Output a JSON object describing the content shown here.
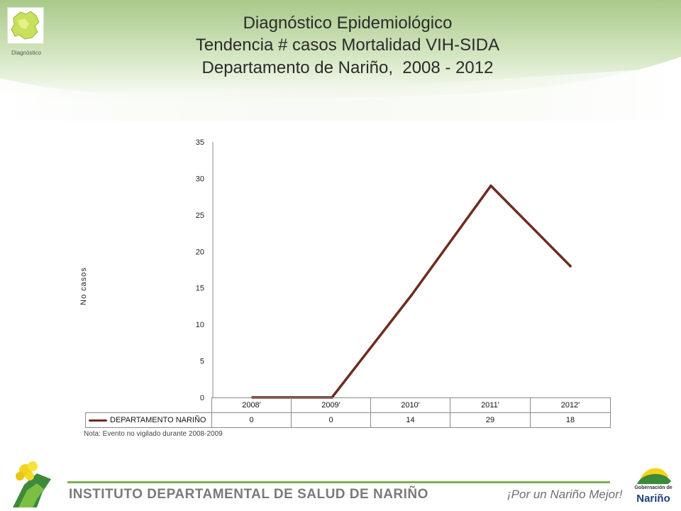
{
  "header": {
    "title_lines": [
      "Diagnóstico Epidemiológico",
      "Tendencia # casos Mortalidad VIH-SIDA",
      "Departamento de Nariño,  2008 - 2012"
    ],
    "logo_caption": "Diagnóstico",
    "logo_icon": "narino-map-icon"
  },
  "chart_data": {
    "type": "line",
    "categories": [
      "2008'",
      "2009'",
      "2010'",
      "2011'",
      "2012'"
    ],
    "series": [
      {
        "name": "DEPARTAMENTO NARIÑO",
        "values": [
          0,
          0,
          14,
          29,
          18
        ],
        "color": "#6e2b1f"
      }
    ],
    "title": "",
    "xlabel": "",
    "ylabel": "No  casos",
    "ylim": [
      0,
      35
    ],
    "yticks": [
      0,
      5,
      10,
      15,
      20,
      25,
      30,
      35
    ],
    "grid": false,
    "legend": "data-table",
    "note": "Nota: Evento no vigilado durante 2008-2009"
  },
  "footer": {
    "institute": "INSTITUTO DEPARTAMENTAL DE SALUD DE NARIÑO",
    "slogan": "¡Por un Nariño Mejor!",
    "gob_line1": "Gobernación de",
    "gob_line2": "Nariño",
    "accent_color": "#79b24a"
  }
}
